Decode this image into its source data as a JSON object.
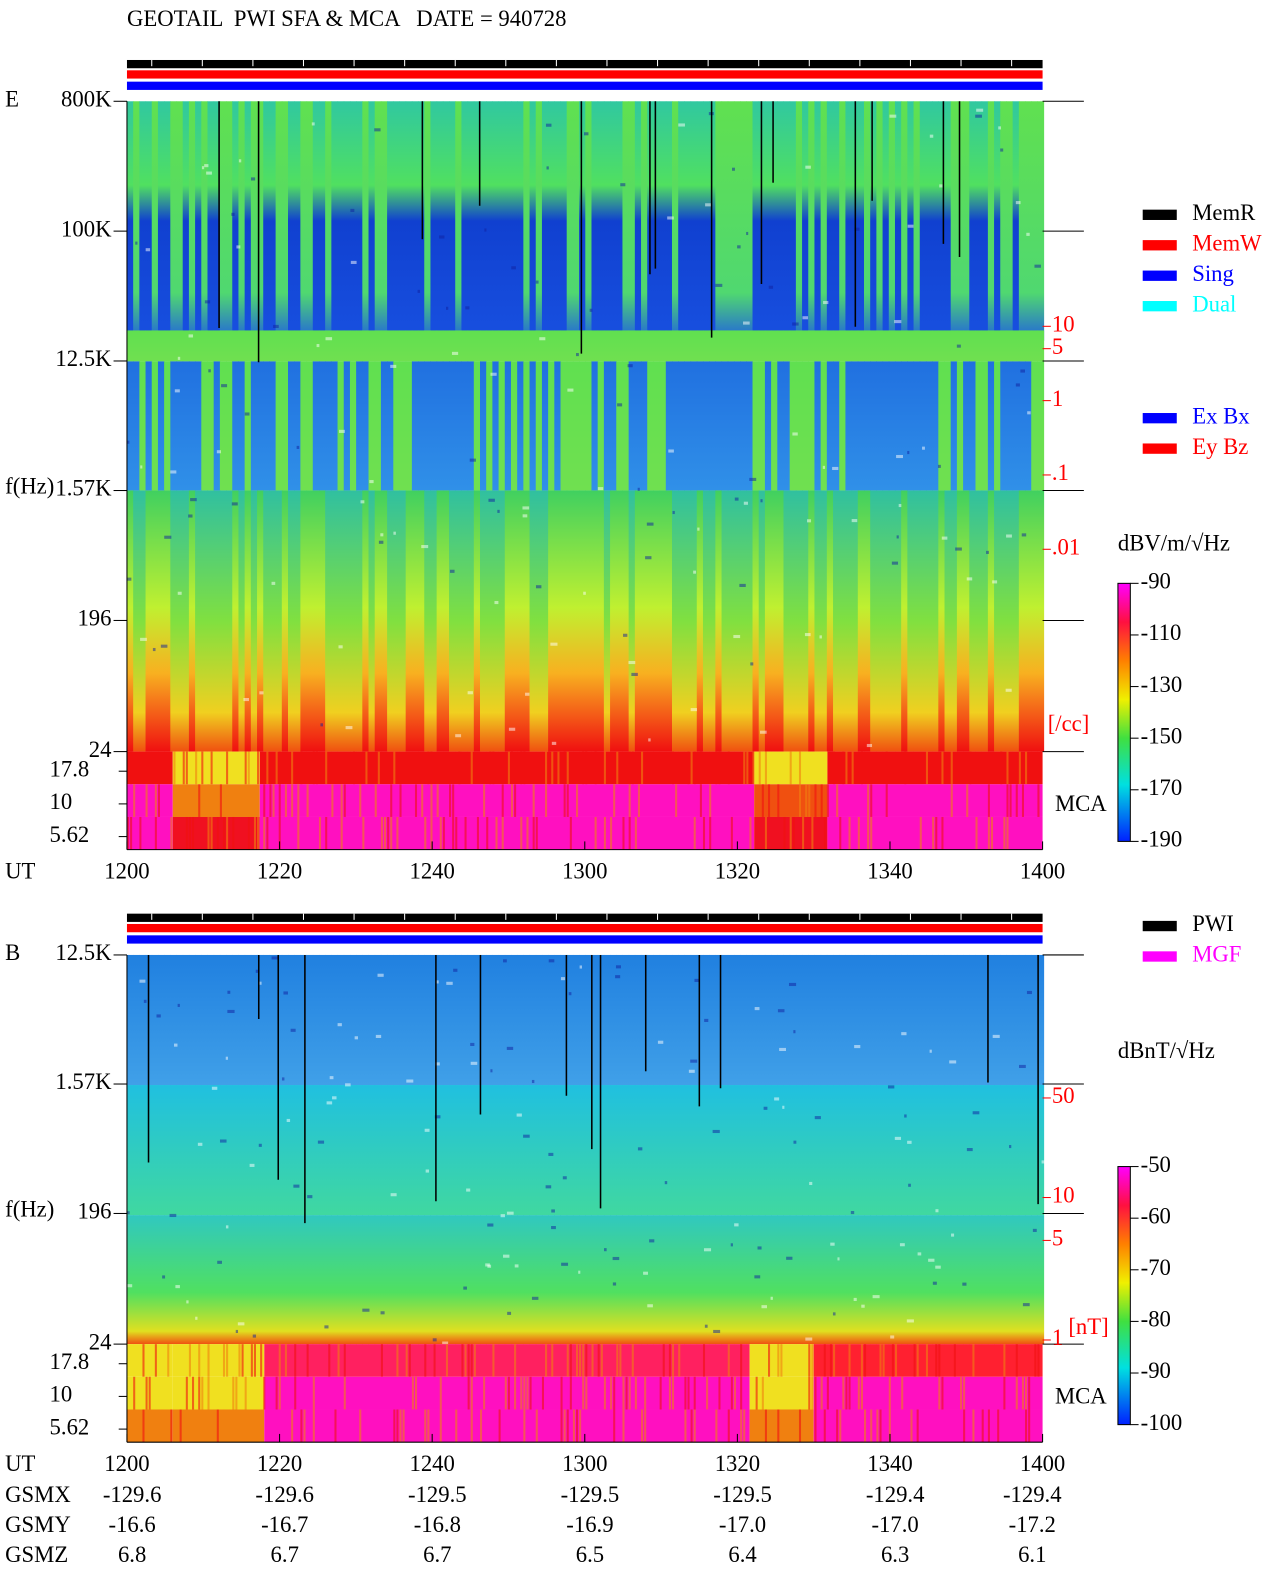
{
  "header": {
    "title": "GEOTAIL  PWI SFA & MCA   DATE = 940728"
  },
  "panels": [
    {
      "label": "E",
      "y_label": "f(Hz)",
      "log_y": true,
      "ylim": [
        24,
        800000
      ],
      "yticks": [
        {
          "value": 800000,
          "label": "800K"
        },
        {
          "value": 100000,
          "label": "100K"
        },
        {
          "value": 12500,
          "label": "12.5K"
        },
        {
          "value": 1570,
          "label": "1.57K"
        },
        196,
        24
      ],
      "mca_ticks": [
        17.8,
        10,
        5.62
      ],
      "mca_label": "MCA",
      "x_label": "UT",
      "xlim": [
        1200,
        1400
      ],
      "xticks": [
        1200,
        1220,
        1240,
        1300,
        1320,
        1340,
        1400
      ],
      "density_ticks": [
        10,
        5,
        1,
        {
          "value": 0.1,
          "label": ".1"
        },
        {
          "value": 0.01,
          "label": ".01"
        }
      ],
      "density_unit": "[/cc]",
      "legend": [
        {
          "name": "MemR",
          "color": "#000000"
        },
        {
          "name": "MemW",
          "color": "#ff0000"
        },
        {
          "name": "Sing",
          "color": "#0000ff"
        },
        {
          "name": "Dual",
          "color": "#00ffff"
        }
      ],
      "legend2": [
        {
          "name": "Ex Bx",
          "color": "#0000ff"
        },
        {
          "name": "Ey Bz",
          "color": "#ff0000"
        }
      ],
      "colorbar": {
        "unit": "dBV/m/√Hz",
        "lim": [
          -190,
          -90
        ],
        "ticks": [
          -90,
          -110,
          -130,
          -150,
          -170,
          -190
        ]
      }
    },
    {
      "label": "B",
      "y_label": "f(Hz)",
      "log_y": true,
      "ylim": [
        24,
        12500
      ],
      "yticks": [
        {
          "value": 12500,
          "label": "12.5K"
        },
        {
          "value": 1570,
          "label": "1.57K"
        },
        196,
        24
      ],
      "mca_ticks": [
        17.8,
        10,
        5.62
      ],
      "mca_label": "MCA",
      "x_label": "UT",
      "xlim": [
        1200,
        1400
      ],
      "xticks": [
        1200,
        1220,
        1240,
        1300,
        1320,
        1340,
        1400
      ],
      "density_ticks": [
        50,
        10,
        5,
        1
      ],
      "density_unit": "[nT]",
      "legend": [
        {
          "name": "PWI",
          "color": "#000000"
        },
        {
          "name": "MGF",
          "color": "#ff00ff"
        }
      ],
      "colorbar": {
        "unit": "dBnT/√Hz",
        "lim": [
          -100,
          -50
        ],
        "ticks": [
          -50,
          -60,
          -70,
          -80,
          -90,
          -100
        ]
      }
    }
  ],
  "orbit": {
    "rows": [
      {
        "label": "GSMX",
        "values": [
          -129.6,
          -129.6,
          -129.5,
          -129.5,
          -129.5,
          -129.4,
          -129.4
        ]
      },
      {
        "label": "GSMY",
        "values": [
          -16.6,
          -16.7,
          -16.8,
          -16.9,
          {
            "value": -17,
            "label": "-17.0"
          },
          {
            "value": -17,
            "label": "-17.0"
          },
          -17.2
        ]
      },
      {
        "label": "GSMZ",
        "values": [
          6.8,
          6.7,
          6.7,
          6.5,
          6.4,
          6.3,
          6.1
        ]
      }
    ]
  }
}
